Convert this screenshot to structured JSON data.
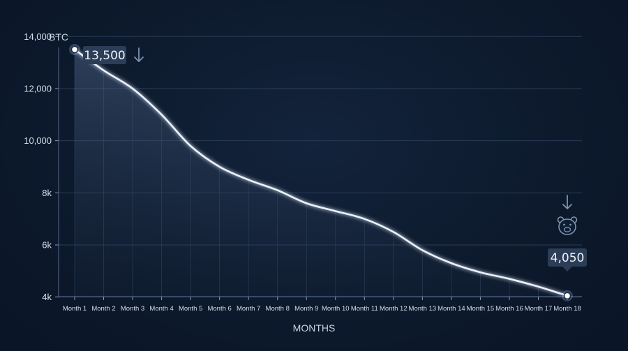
{
  "chart_data": {
    "type": "area",
    "ylabel": "BTC",
    "xlabel": "MONTHS",
    "categories": [
      "Month 1",
      "Month 2",
      "Month 3",
      "Month 4",
      "Month 5",
      "Month 6",
      "Month 7",
      "Month 8",
      "Month 9",
      "Month 10",
      "Month 11",
      "Month 12",
      "Month 13",
      "Month 14",
      "Month 15",
      "Month 16",
      "Month 17",
      "Month 18"
    ],
    "series": [
      {
        "values": [
          13500,
          12700,
          12000,
          11000,
          9800,
          9000,
          8500,
          8100,
          7600,
          7300,
          7000,
          6500,
          5800,
          5300,
          4950,
          4700,
          4400,
          4050
        ]
      }
    ],
    "yticks": [
      {
        "value": 4000,
        "label": "4k"
      },
      {
        "value": 6000,
        "label": "6k"
      },
      {
        "value": 8000,
        "label": "8k"
      },
      {
        "value": 10000,
        "label": "10,000"
      },
      {
        "value": 12000,
        "label": "12,000"
      },
      {
        "value": 14000,
        "label": "14,000"
      }
    ],
    "ylim": [
      3400,
      14500
    ],
    "grid": true,
    "annotations": [
      {
        "category": "Month 1",
        "label": "13,500",
        "icon": "down-arrow-icon"
      },
      {
        "category": "Month 18",
        "label": "4,050",
        "icon": "down-arrow-icon",
        "extra_icon": "bear-icon"
      }
    ],
    "colors": {
      "line": "#eaf2ff",
      "glow": "#9fc3ff",
      "grid": "#2a3b55",
      "callout": "#2c3d57",
      "arrow": "#7f93b0"
    }
  }
}
